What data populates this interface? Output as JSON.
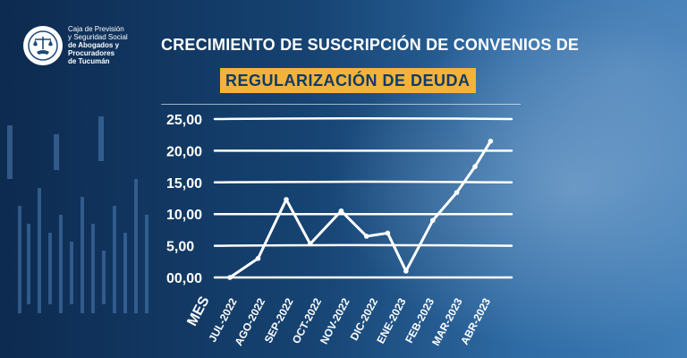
{
  "org": {
    "line1": "Caja de Previsión",
    "line2": "y Seguridad Social",
    "line3": "de Abogados y",
    "line4": "Procuradores",
    "line5": "de Tucumán",
    "logo_icon": "scales-of-justice-handshake-icon"
  },
  "title": "CRECIMIENTO DE SUSCRIPCIÓN DE CONVENIOS DE",
  "subtitle": "REGULARIZACIÓN DE DEUDA",
  "colors": {
    "accent": "#f3b33a",
    "line": "#ffffff",
    "background": "#12355f"
  },
  "chart_data": {
    "type": "line",
    "title": "CRECIMIENTO DE SUSCRIPCIÓN DE CONVENIOS DE REGULARIZACIÓN DE DEUDA",
    "xlabel": "MES",
    "ylabel": "",
    "ylim": [
      0,
      25
    ],
    "yticks": [
      0,
      5,
      10,
      15,
      20,
      25
    ],
    "ytick_labels": [
      "00,00",
      "5,00",
      "10,00",
      "15,00",
      "20,00",
      "25,00"
    ],
    "grid": true,
    "categories": [
      "JUL-2022",
      "AGO-2022",
      "SEP-2022",
      "OCT-2022",
      "NOV-2022",
      "DIC-2022",
      "ENE-2023",
      "FEB-2023",
      "MAR-2023",
      "ABR-2023"
    ],
    "x": [
      0,
      1,
      2,
      2.85,
      3.95,
      4.85,
      5.6,
      6.25,
      7.2,
      8.05,
      8.7,
      9.25
    ],
    "values": [
      0,
      3,
      12.3,
      5.3,
      10.5,
      6.5,
      7,
      1,
      9,
      13.4,
      17.5,
      21.5
    ]
  }
}
